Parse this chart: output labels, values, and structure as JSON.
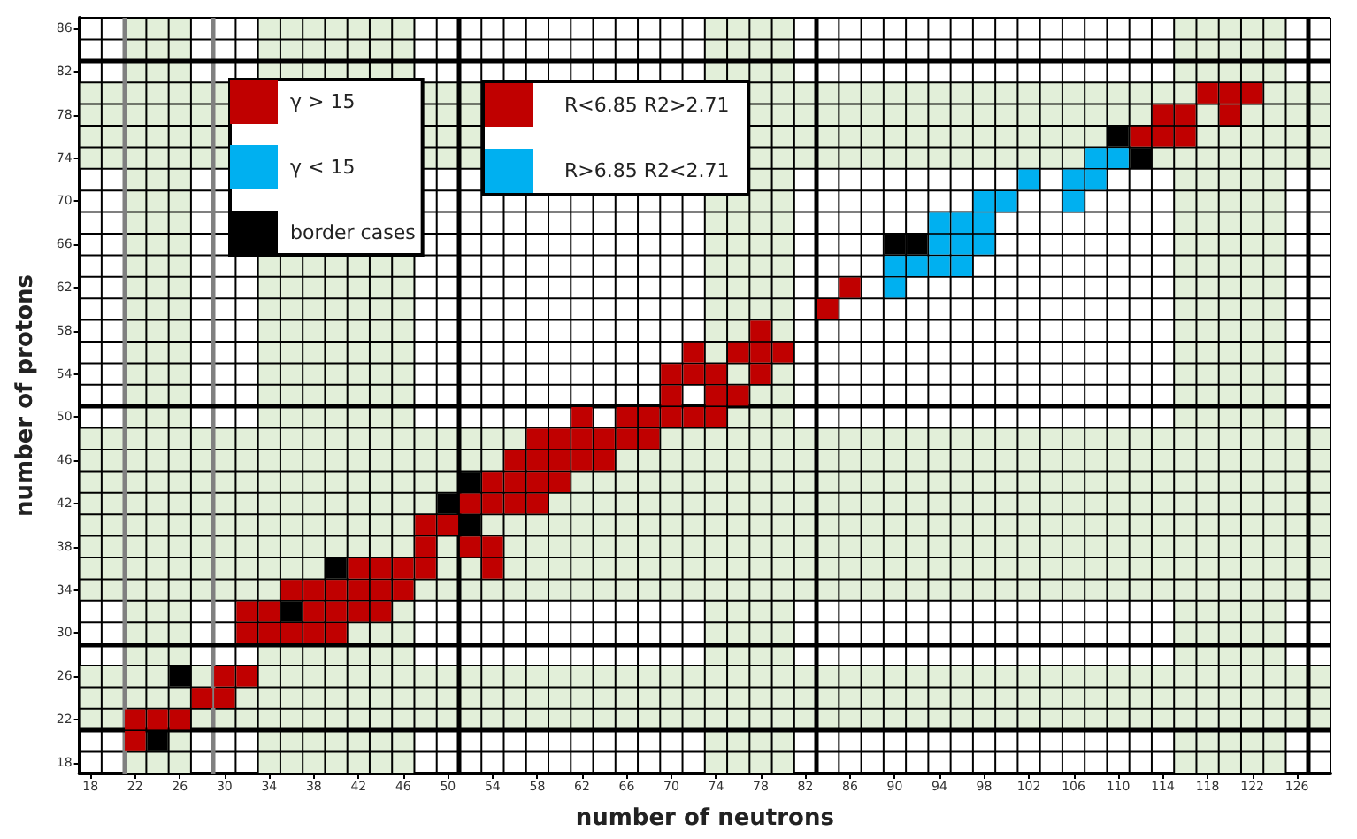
{
  "chart_data": {
    "type": "scatter",
    "xlabel": "number of neutrons",
    "ylabel": "number of protons",
    "marker": "square",
    "legend": "top left",
    "grid": true,
    "xlim": [
      17,
      129
    ],
    "ylim": [
      17,
      87
    ],
    "xticks": [
      18,
      22,
      26,
      30,
      34,
      38,
      42,
      46,
      50,
      54,
      58,
      62,
      66,
      70,
      74,
      78,
      82,
      86,
      90,
      94,
      98,
      102,
      106,
      110,
      114,
      118,
      122,
      126
    ],
    "yticks": [
      18,
      22,
      26,
      30,
      34,
      38,
      42,
      46,
      50,
      54,
      58,
      62,
      66,
      70,
      74,
      78,
      82,
      86
    ],
    "series": [
      {
        "name": "γ > 15",
        "color": "#c00000",
        "x": [
          22,
          22,
          24,
          26,
          28,
          30,
          30,
          32,
          32,
          34,
          36,
          38,
          40,
          32,
          34,
          38,
          40,
          42,
          44,
          36,
          38,
          40,
          42,
          44,
          46,
          42,
          44,
          46,
          48,
          54,
          48,
          52,
          54,
          48,
          50,
          52,
          54,
          56,
          58,
          54,
          56,
          58,
          60,
          56,
          58,
          60,
          62,
          64,
          58,
          60,
          62,
          64,
          66,
          68,
          62,
          66,
          68,
          70,
          72,
          74,
          70,
          74,
          76,
          70,
          72,
          74,
          78,
          72,
          76,
          78,
          80,
          78,
          84,
          86,
          112,
          114,
          116,
          114,
          116,
          120,
          118,
          120,
          122
        ],
        "values": [
          20,
          22,
          22,
          22,
          24,
          24,
          26,
          26,
          30,
          30,
          30,
          30,
          30,
          32,
          32,
          32,
          32,
          32,
          32,
          34,
          34,
          34,
          34,
          34,
          34,
          36,
          36,
          36,
          36,
          36,
          38,
          38,
          38,
          40,
          40,
          42,
          42,
          42,
          42,
          44,
          44,
          44,
          44,
          46,
          46,
          46,
          46,
          46,
          48,
          48,
          48,
          48,
          48,
          48,
          50,
          50,
          50,
          50,
          50,
          50,
          52,
          52,
          52,
          54,
          54,
          54,
          54,
          56,
          56,
          56,
          56,
          58,
          60,
          62,
          76,
          76,
          76,
          78,
          78,
          78,
          80,
          80,
          80
        ]
      },
      {
        "name": "γ < 15",
        "color": "#00b0f0",
        "x": [
          90,
          90,
          92,
          94,
          96,
          94,
          96,
          98,
          94,
          96,
          98,
          98,
          100,
          106,
          102,
          106,
          108,
          108,
          110
        ],
        "values": [
          62,
          64,
          64,
          64,
          64,
          66,
          66,
          66,
          68,
          68,
          68,
          70,
          70,
          70,
          72,
          72,
          72,
          74,
          74
        ]
      },
      {
        "name": "border cases",
        "color": "#000000",
        "x": [
          24,
          26,
          36,
          40,
          52,
          50,
          52,
          90,
          92,
          112,
          110
        ],
        "values": [
          20,
          26,
          32,
          36,
          40,
          42,
          44,
          66,
          66,
          74,
          76
        ]
      }
    ],
    "annotations": [
      "R<6.85 R2>2.71",
      "R>6.85 R2<2.71"
    ],
    "bands": [
      {
        "axis": "x",
        "from": 21,
        "to": 27,
        "color": "#e2efd9"
      },
      {
        "axis": "x",
        "from": 33,
        "to": 47,
        "color": "#e2efd9"
      },
      {
        "axis": "x",
        "from": 73,
        "to": 81,
        "color": "#e2efd9"
      },
      {
        "axis": "x",
        "from": 115,
        "to": 125,
        "color": "#e2efd9"
      },
      {
        "axis": "y",
        "from": 21,
        "to": 27,
        "color": "#e2efd9"
      },
      {
        "axis": "y",
        "from": 33,
        "to": 49,
        "color": "#e2efd9"
      },
      {
        "axis": "y",
        "from": 73,
        "to": 81,
        "color": "#e2efd9"
      }
    ],
    "ref_lines": [
      {
        "axis": "x",
        "value": 21,
        "color": "#808080"
      },
      {
        "axis": "x",
        "value": 29,
        "color": "#808080"
      },
      {
        "axis": "x",
        "value": 51,
        "color": "#000000"
      },
      {
        "axis": "x",
        "value": 83,
        "color": "#000000"
      },
      {
        "axis": "x",
        "value": 127,
        "color": "#000000"
      },
      {
        "axis": "y",
        "value": 21,
        "color": "#000000"
      },
      {
        "axis": "y",
        "value": 29,
        "color": "#000000"
      },
      {
        "axis": "y",
        "value": 51,
        "color": "#000000"
      },
      {
        "axis": "y",
        "value": 83,
        "color": "#000000"
      }
    ]
  }
}
